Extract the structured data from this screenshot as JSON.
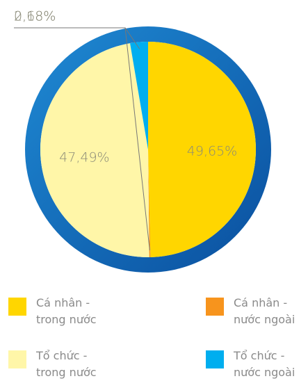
{
  "chart_data": {
    "type": "pie",
    "series": [
      {
        "name": "Cá nhân - trong nước",
        "color": "#ffd600",
        "values": [
          49.65
        ],
        "value_labels": [
          "49,65%"
        ]
      },
      {
        "name": "Cá nhân - nước ngoài",
        "color": "#f7941d",
        "values": [
          0.18
        ],
        "value_labels": [
          "0,18%"
        ]
      },
      {
        "name": "Tổ chức - trong nước",
        "color": "#fff6a8",
        "values": [
          47.49
        ],
        "value_labels": [
          "47,49%"
        ]
      },
      {
        "name": "Tổ chức - nước ngoài",
        "color": "#00aeef",
        "values": [
          2.68
        ],
        "value_labels": [
          "2,68%"
        ]
      }
    ]
  }
}
